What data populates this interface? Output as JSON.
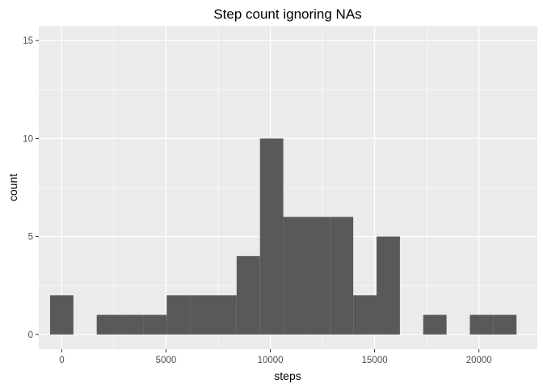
{
  "chart_data": {
    "type": "histogram",
    "title": "Step count ignoring NAs",
    "xlabel": "steps",
    "ylabel": "count",
    "bin_width": 1118,
    "bin_centers": [
      0,
      1118,
      2236,
      3354,
      4472,
      5590,
      6708,
      7826,
      8944,
      10062,
      11180,
      12298,
      13416,
      14534,
      15652,
      16770,
      17888,
      19006,
      20124,
      21242
    ],
    "values": [
      2,
      0,
      1,
      1,
      1,
      2,
      2,
      2,
      4,
      10,
      6,
      6,
      6,
      2,
      5,
      0,
      1,
      0,
      1,
      1
    ],
    "xlim": [
      -1100,
      22800
    ],
    "ylim": [
      -0.75,
      15.75
    ],
    "x_ticks": [
      0,
      5000,
      10000,
      15000,
      20000
    ],
    "x_tick_labels": [
      "0",
      "5000",
      "10000",
      "15000",
      "20000"
    ],
    "y_ticks": [
      0,
      5,
      10,
      15
    ],
    "y_tick_labels": [
      "0",
      "5",
      "10",
      "15"
    ],
    "grid": true,
    "colors": {
      "panel_background": "#EBEBEB",
      "grid_major": "#FFFFFF",
      "bar_fill": "#595959",
      "tick_text": "#4D4D4D",
      "axis_title_text": "#000000"
    }
  }
}
